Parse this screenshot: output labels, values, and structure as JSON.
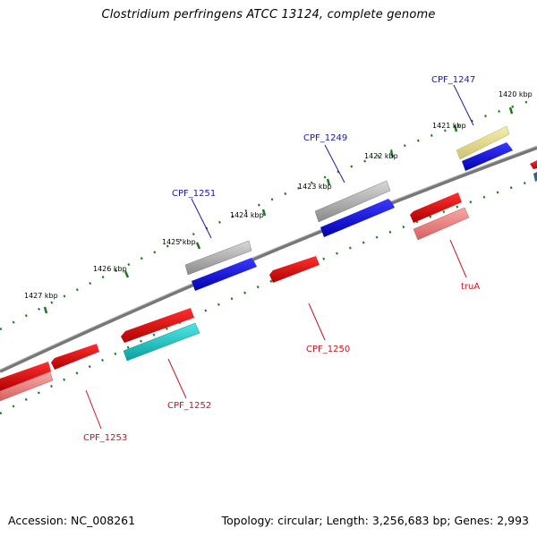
{
  "title": "Clostridium perfringens ATCC 13124, complete genome",
  "accession": "Accession: NC_008261",
  "summary": "Topology: circular; Length: 3,256,683 bp; Genes: 2,993",
  "ticks": [
    "1420 kbp",
    "1421 kbp",
    "1422 kbp",
    "1423 kbp",
    "1424 kbp",
    "1425 kbp",
    "1426 kbp",
    "1427 kbp"
  ],
  "gene_labels": {
    "cpf_1247": "CPF_1247",
    "cpf_1249": "CPF_1249",
    "cpf_1251": "CPF_1251",
    "trua": "truA",
    "cpf_1250": "CPF_1250",
    "cpf_1252": "CPF_1252",
    "cpf_1253": "CPF_1253"
  },
  "colors": {
    "forward_cds": "#0000e6",
    "reverse_cds": "#e60000",
    "gene_gray": "#a0a0a0",
    "gene_yellow": "#e6dc8c",
    "gene_cyan": "#14c8c8",
    "gene_pink": "#f08080",
    "backbone": "#777777",
    "tick_green": "#1e7a1e"
  }
}
